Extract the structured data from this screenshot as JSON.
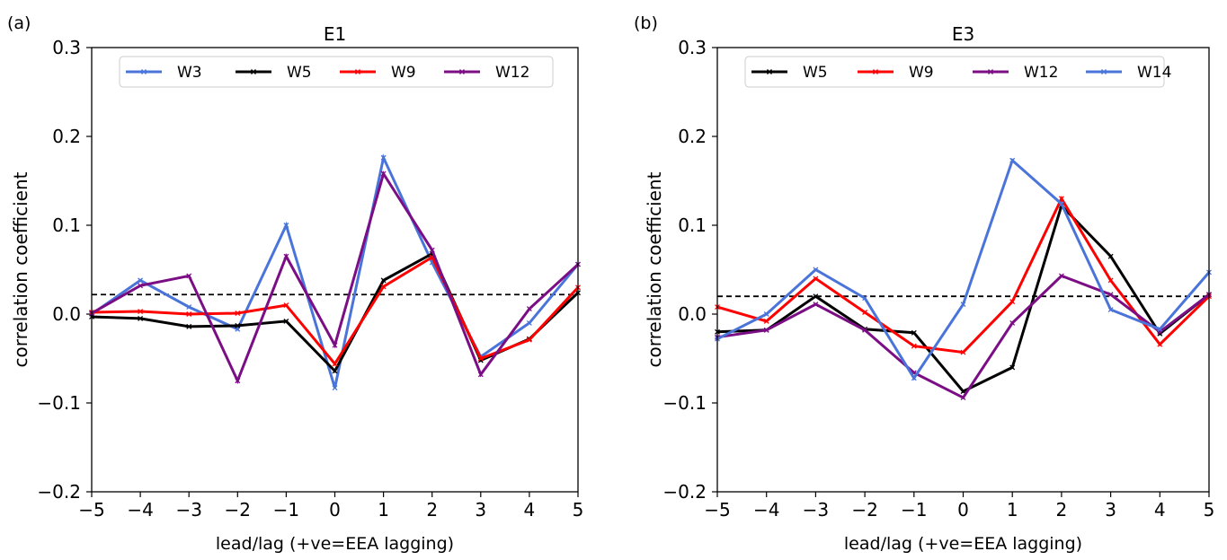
{
  "chart_data": [
    {
      "type": "line",
      "panel_label": "(a)",
      "title": "E1",
      "xlabel": "lead/lag (+ve=EEA lagging)",
      "ylabel": "correlation coefficient",
      "xlim": [
        -5,
        5
      ],
      "ylim": [
        -0.2,
        0.3
      ],
      "x": [
        -5,
        -4,
        -3,
        -2,
        -1,
        0,
        1,
        2,
        3,
        4,
        5
      ],
      "xtick_labels": [
        "−5",
        "−4",
        "−3",
        "−2",
        "−1",
        "0",
        "1",
        "2",
        "3",
        "4",
        "5"
      ],
      "ytick_values": [
        -0.2,
        -0.1,
        0.0,
        0.1,
        0.2,
        0.3
      ],
      "ytick_labels": [
        "−0.2",
        "−0.1",
        "0.0",
        "0.1",
        "0.2",
        "0.3"
      ],
      "reference_line": 0.022,
      "legend_position": "top",
      "grid": false,
      "series": [
        {
          "name": "W3",
          "color": "#4a74d9",
          "marker": "x",
          "values": [
            0.0,
            0.038,
            0.008,
            -0.017,
            0.1,
            -0.083,
            0.176,
            0.058,
            -0.048,
            -0.01,
            0.056
          ]
        },
        {
          "name": "W5",
          "color": "#000000",
          "marker": "x",
          "values": [
            -0.003,
            -0.005,
            -0.014,
            -0.013,
            -0.008,
            -0.064,
            0.038,
            0.068,
            -0.052,
            -0.028,
            0.024
          ]
        },
        {
          "name": "W9",
          "color": "#ff0000",
          "marker": "x",
          "values": [
            0.002,
            0.003,
            0.0,
            0.001,
            0.01,
            -0.056,
            0.031,
            0.064,
            -0.05,
            -0.029,
            0.03
          ]
        },
        {
          "name": "W12",
          "color": "#7b0d85",
          "marker": "x",
          "values": [
            0.001,
            0.032,
            0.043,
            -0.075,
            0.065,
            -0.035,
            0.158,
            0.072,
            -0.068,
            0.006,
            0.056
          ]
        }
      ]
    },
    {
      "type": "line",
      "panel_label": "(b)",
      "title": "E3",
      "xlabel": "lead/lag (+ve=EEA lagging)",
      "ylabel": "correlation coefficient",
      "xlim": [
        -5,
        5
      ],
      "ylim": [
        -0.2,
        0.3
      ],
      "x": [
        -5,
        -4,
        -3,
        -2,
        -1,
        0,
        1,
        2,
        3,
        4,
        5
      ],
      "xtick_labels": [
        "−5",
        "−4",
        "−3",
        "−2",
        "−1",
        "0",
        "1",
        "2",
        "3",
        "4",
        "5"
      ],
      "ytick_values": [
        -0.2,
        -0.1,
        0.0,
        0.1,
        0.2,
        0.3
      ],
      "ytick_labels": [
        "−0.2",
        "−0.1",
        "0.0",
        "0.1",
        "0.2",
        "0.3"
      ],
      "reference_line": 0.02,
      "legend_position": "top",
      "grid": false,
      "series": [
        {
          "name": "W5",
          "color": "#000000",
          "marker": "x",
          "values": [
            -0.02,
            -0.018,
            0.02,
            -0.017,
            -0.021,
            -0.087,
            -0.06,
            0.122,
            0.065,
            -0.022,
            0.022
          ]
        },
        {
          "name": "W9",
          "color": "#ff0000",
          "marker": "x",
          "values": [
            0.008,
            -0.008,
            0.04,
            0.002,
            -0.036,
            -0.043,
            0.014,
            0.13,
            0.038,
            -0.034,
            0.02
          ]
        },
        {
          "name": "W12",
          "color": "#7b0d85",
          "marker": "x",
          "values": [
            -0.026,
            -0.018,
            0.011,
            -0.018,
            -0.066,
            -0.094,
            -0.01,
            0.043,
            0.022,
            -0.02,
            0.022
          ]
        },
        {
          "name": "W14",
          "color": "#4a74d9",
          "marker": "x",
          "values": [
            -0.028,
            0.0,
            0.05,
            0.018,
            -0.072,
            0.011,
            0.173,
            0.124,
            0.005,
            -0.017,
            0.047
          ]
        }
      ]
    }
  ]
}
